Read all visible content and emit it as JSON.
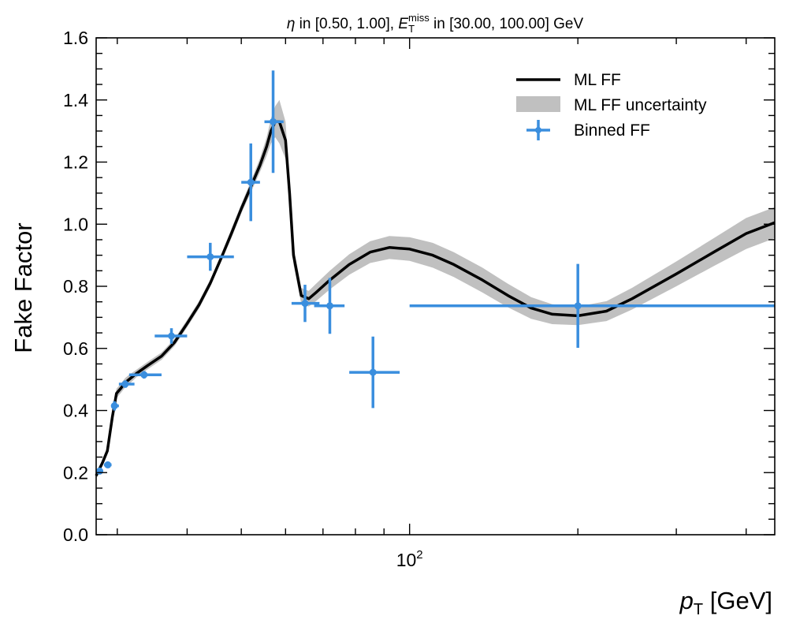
{
  "chart_data": {
    "type": "line",
    "title": {
      "eta_symbol": "η",
      "pre": " in [0.50, 1.00], ",
      "met_main": "E",
      "met_sub": "T",
      "met_sup": "miss",
      "post": " in [30.00, 100.00] GeV"
    },
    "xlabel": {
      "main": "p",
      "sub": "T",
      "rest": " [GeV]"
    },
    "ylabel": "Fake Factor",
    "xscale": "log",
    "xlim": [
      27.5,
      450
    ],
    "ylim": [
      0.0,
      1.6
    ],
    "yticks": [
      "0.0",
      "0.2",
      "0.4",
      "0.6",
      "0.8",
      "1.0",
      "1.2",
      "1.4",
      "1.6"
    ],
    "xtick_labels": [
      {
        "x": 100,
        "base": "10",
        "exp": "2"
      }
    ],
    "legend_position": "top-right",
    "legend": [
      {
        "label": "ML FF",
        "kind": "line"
      },
      {
        "label": "ML FF uncertainty",
        "kind": "band"
      },
      {
        "label": "Binned FF",
        "kind": "errorbar"
      }
    ],
    "colors": {
      "ml_line": "#000000",
      "band": "#c0c0c0",
      "binned": "#3a8ede"
    },
    "series": [
      {
        "name": "ML FF",
        "x": [
          27.5,
          28.2,
          28.8,
          29.4,
          29.9,
          30.4,
          31.0,
          31.5,
          32.5,
          34.0,
          36.0,
          38.0,
          40.0,
          42.0,
          44.0,
          46.0,
          48.0,
          50.0,
          52.0,
          54.0,
          55.5,
          56.5,
          57.5,
          58.5,
          60.0,
          61.0,
          62.0,
          64.0,
          66.0,
          68.0,
          72.0,
          78.0,
          85.0,
          92.0,
          100.0,
          110.0,
          120.0,
          135.0,
          150.0,
          165.0,
          180.0,
          200.0,
          225.0,
          250.0,
          300.0,
          350.0,
          400.0,
          450.0
        ],
        "y": [
          0.19,
          0.23,
          0.27,
          0.38,
          0.455,
          0.47,
          0.49,
          0.5,
          0.52,
          0.545,
          0.575,
          0.62,
          0.68,
          0.74,
          0.81,
          0.89,
          0.97,
          1.05,
          1.12,
          1.19,
          1.25,
          1.3,
          1.33,
          1.33,
          1.27,
          1.1,
          0.9,
          0.77,
          0.76,
          0.78,
          0.82,
          0.87,
          0.91,
          0.925,
          0.92,
          0.9,
          0.87,
          0.82,
          0.77,
          0.73,
          0.71,
          0.705,
          0.72,
          0.76,
          0.84,
          0.91,
          0.97,
          1.005
        ]
      },
      {
        "name": "ML FF uncertainty",
        "x": [
          27.5,
          28.2,
          28.8,
          29.4,
          29.9,
          30.4,
          31.0,
          31.5,
          32.5,
          34.0,
          36.0,
          38.0,
          40.0,
          42.0,
          44.0,
          46.0,
          48.0,
          50.0,
          52.0,
          54.0,
          55.5,
          56.5,
          57.5,
          58.5,
          60.0,
          61.0,
          62.0,
          64.0,
          66.0,
          68.0,
          72.0,
          78.0,
          85.0,
          92.0,
          100.0,
          110.0,
          120.0,
          135.0,
          150.0,
          165.0,
          180.0,
          200.0,
          225.0,
          250.0,
          300.0,
          350.0,
          400.0,
          450.0
        ],
        "err": [
          0.01,
          0.01,
          0.012,
          0.015,
          0.015,
          0.015,
          0.015,
          0.015,
          0.012,
          0.012,
          0.012,
          0.012,
          0.012,
          0.012,
          0.012,
          0.012,
          0.015,
          0.015,
          0.018,
          0.022,
          0.03,
          0.04,
          0.05,
          0.07,
          0.06,
          0.04,
          0.03,
          0.025,
          0.025,
          0.028,
          0.03,
          0.033,
          0.035,
          0.037,
          0.038,
          0.04,
          0.04,
          0.04,
          0.038,
          0.035,
          0.032,
          0.03,
          0.032,
          0.035,
          0.04,
          0.045,
          0.05,
          0.05
        ]
      },
      {
        "name": "Binned FF",
        "x": [
          27.9,
          28.85,
          29.65,
          31.0,
          33.5,
          37.5,
          44.0,
          52.0,
          57.0,
          65.0,
          72.0,
          86.0,
          200.0
        ],
        "xerr_low": [
          0.4,
          0.45,
          0.35,
          0.8,
          2.0,
          2.5,
          4.0,
          2.0,
          2.0,
          3.5,
          4.5,
          8.0,
          100.0
        ],
        "xerr_high": [
          0.4,
          0.45,
          0.55,
          1.2,
          2.5,
          2.5,
          4.5,
          2.0,
          2.5,
          4.0,
          4.5,
          10.0,
          250.0
        ],
        "y": [
          0.205,
          0.225,
          0.415,
          0.485,
          0.515,
          0.64,
          0.895,
          1.135,
          1.33,
          0.745,
          0.737,
          0.523,
          0.737
        ],
        "yerr": [
          0.005,
          0.008,
          0.015,
          0.012,
          0.012,
          0.025,
          0.045,
          0.125,
          0.165,
          0.06,
          0.09,
          0.115,
          0.135
        ]
      }
    ]
  }
}
